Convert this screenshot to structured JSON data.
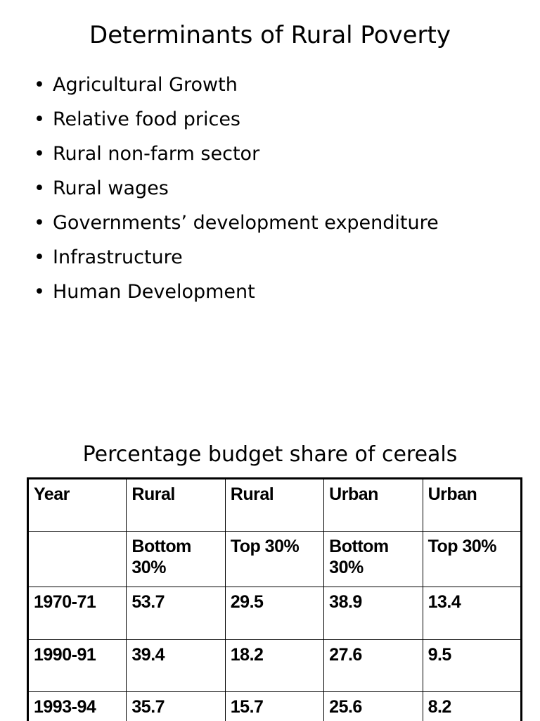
{
  "title": "Determinants of Rural Poverty",
  "bullets": [
    "Agricultural Growth",
    "Relative food prices",
    "Rural non-farm sector",
    "Rural wages",
    "Governments’ development expenditure",
    "Infrastructure",
    "Human Development"
  ],
  "table": {
    "title": "Percentage budget share of cereals",
    "header": [
      [
        "Year",
        "Rural",
        "Rural",
        "Urban",
        "Urban"
      ],
      [
        null,
        "Bottom 30%",
        "Top 30%",
        "Bottom 30%",
        "Top 30%"
      ]
    ],
    "rows": [
      [
        "1970-71",
        "53.7",
        "29.5",
        "38.9",
        "13.4"
      ],
      [
        "1990-91",
        "39.4",
        "18.2",
        "27.6",
        "9.5"
      ],
      [
        "1993-94",
        "35.7",
        "15.7",
        "25.6",
        "8.2"
      ]
    ]
  }
}
